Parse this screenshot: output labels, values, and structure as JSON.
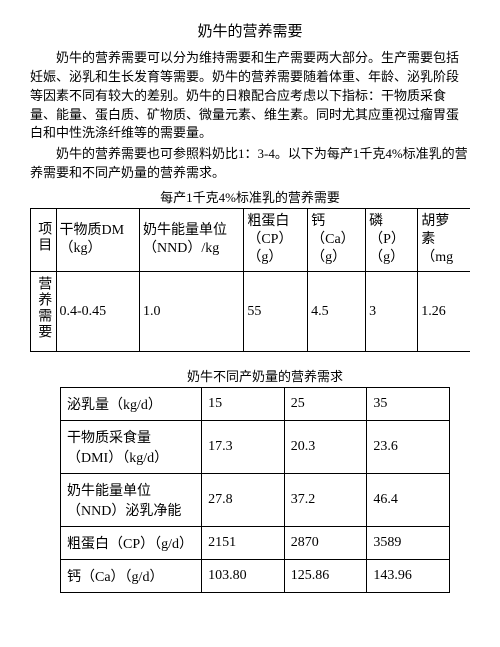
{
  "title": "奶牛的营养需要",
  "para1": "奶牛的营养需要可以分为维持需要和生产需要两大部分。生产需要包括妊娠、泌乳和生长发育等需要。奶牛的营养需要随着体重、年龄、泌乳阶段等因素不同有较大的差别。奶牛的日粮配合应考虑以下指标：干物质采食量、能量、蛋白质、矿物质、微量元素、维生素。同时尤其应重视过瘤胃蛋白和中性洗涤纤维等的需要量。",
  "para2": "奶牛的营养需要也可参照料奶比1：3-4。以下为每产1千克4%标准乳的营养需要和不同产奶量的营养需求。",
  "table1": {
    "caption": "每产1千克4%标准乳的营养需要",
    "headers": {
      "c0": "项目",
      "c1": "干物质DM（kg）",
      "c2a": "奶牛能量单位",
      "c2b": "（NND）/kg",
      "c3a": "粗蛋白",
      "c3b": "（CP）",
      "c3c": "（g）",
      "c4a": "钙",
      "c4b": "（Ca）",
      "c4c": "（g）",
      "c5a": "磷",
      "c5b": "（P）",
      "c5c": "（g）",
      "c6a": "胡萝",
      "c6b": "素",
      "c6c": "（mg"
    },
    "row_label": "营养需要",
    "values": {
      "c1": "0.4-0.45",
      "c2": "1.0",
      "c3": "55",
      "c4": "4.5",
      "c5": "3",
      "c6": "1.26"
    }
  },
  "table2": {
    "caption": "奶牛不同产奶量的营养需求",
    "rows": [
      {
        "label": "泌乳量（kg/d）",
        "v1": "15",
        "v2": "25",
        "v3": "35"
      },
      {
        "label": "干物质采食量（DMI）（kg/d）",
        "v1": "17.3",
        "v2": "20.3",
        "v3": "23.6"
      },
      {
        "label": "奶牛能量单位（NND）泌乳净能",
        "v1": "27.8",
        "v2": "37.2",
        "v3": "46.4"
      },
      {
        "label": "粗蛋白（CP）（g/d）",
        "v1": "2151",
        "v2": "2870",
        "v3": "3589"
      },
      {
        "label": "钙（Ca）（g/d）",
        "v1": "103.80",
        "v2": "125.86",
        "v3": "143.96"
      }
    ]
  }
}
